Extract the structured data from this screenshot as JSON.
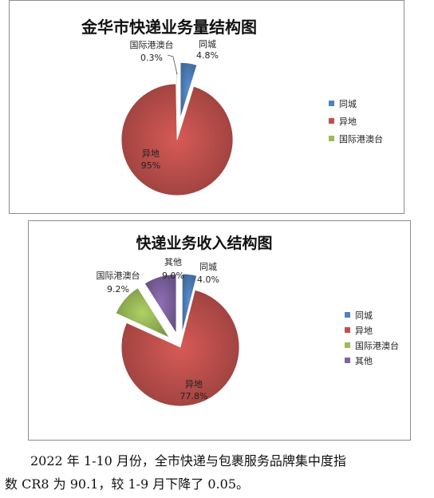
{
  "chart_data": [
    {
      "type": "pie",
      "title": "金华市快递业务量结构图",
      "categories": [
        "同城",
        "异地",
        "国际港澳台"
      ],
      "values": [
        4.8,
        95,
        0.3
      ],
      "data_labels": [
        "4.8%",
        "95%",
        "0.3%"
      ],
      "colors": [
        "#4f81bd",
        "#c0504d",
        "#9bbb59"
      ],
      "exploded": true,
      "legend": "right"
    },
    {
      "type": "pie",
      "title": "快递业务收入结构图",
      "categories": [
        "同城",
        "异地",
        "国际港澳台",
        "其他"
      ],
      "values": [
        4.0,
        77.8,
        9.2,
        9.0
      ],
      "data_labels": [
        "4.0%",
        "77.8%",
        "9.2%",
        "9.0%"
      ],
      "colors": [
        "#4f81bd",
        "#c0504d",
        "#9bbb59",
        "#8064a2"
      ],
      "exploded": true,
      "legend": "right"
    }
  ],
  "paragraph": {
    "line1": "2022 年 1-10 月份，全市快递与包裹服务品牌集中度指",
    "line2": "数 CR8 为 90.1，较 1-9 月下降了 0.05。"
  }
}
